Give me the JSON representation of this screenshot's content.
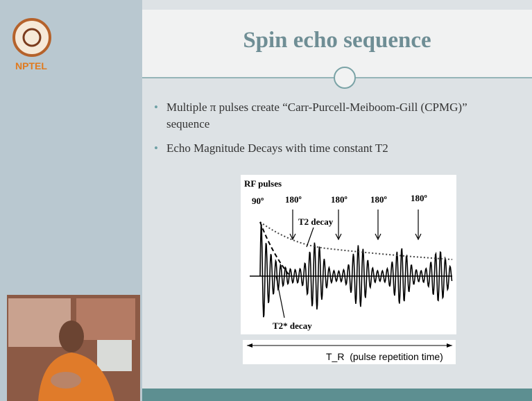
{
  "logo": {
    "label": "NPTEL"
  },
  "slide": {
    "title": "Spin echo sequence",
    "bullets": [
      "Multiple π pulses create “Carr-Purcell-Meiboom-Gill (CPMG)” sequence",
      "Echo Magnitude Decays with time constant T2"
    ],
    "figure": {
      "heading": "RF pulses",
      "pulse_labels": [
        "90º",
        "180º",
        "180º",
        "180º",
        "180º"
      ],
      "annotations": [
        "T2 decay",
        "T2* decay"
      ],
      "timeline_label": "T_R  (pulse repetition time)"
    }
  }
}
